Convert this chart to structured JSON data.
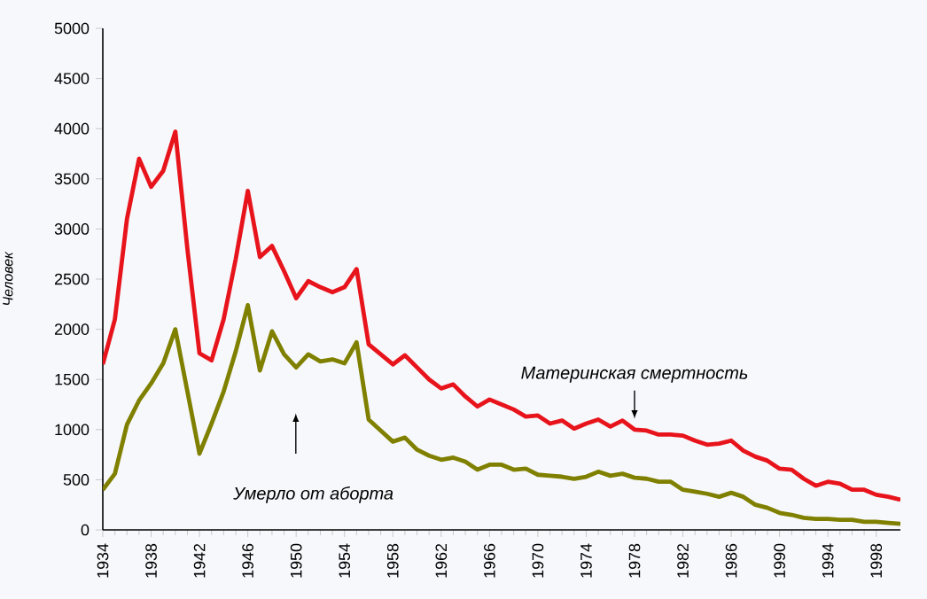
{
  "chart_data": {
    "type": "line",
    "ylabel": "Человек",
    "x": [
      1934,
      1935,
      1936,
      1937,
      1938,
      1939,
      1940,
      1941,
      1942,
      1943,
      1944,
      1945,
      1946,
      1947,
      1948,
      1949,
      1950,
      1951,
      1952,
      1953,
      1954,
      1955,
      1956,
      1957,
      1958,
      1959,
      1960,
      1961,
      1962,
      1963,
      1964,
      1965,
      1966,
      1967,
      1968,
      1969,
      1970,
      1971,
      1972,
      1973,
      1974,
      1975,
      1976,
      1977,
      1978,
      1979,
      1980,
      1981,
      1982,
      1983,
      1984,
      1985,
      1986,
      1987,
      1988,
      1989,
      1990,
      1991,
      1992,
      1993,
      1994,
      1995,
      1996,
      1997,
      1998,
      1999,
      2000
    ],
    "series": [
      {
        "color": "#e8141c",
        "values": [
          1650,
          2100,
          3100,
          3700,
          3420,
          3580,
          3970,
          2800,
          1760,
          1690,
          2100,
          2700,
          3380,
          2720,
          2830,
          2580,
          2310,
          2480,
          2420,
          2370,
          2420,
          2600,
          1850,
          1750,
          1650,
          1740,
          1620,
          1500,
          1410,
          1450,
          1330,
          1230,
          1300,
          1250,
          1200,
          1130,
          1140,
          1060,
          1090,
          1010,
          1060,
          1100,
          1030,
          1090,
          1000,
          990,
          950,
          950,
          940,
          890,
          850,
          860,
          890,
          790,
          730,
          690,
          610,
          600,
          510,
          440,
          480,
          460,
          400,
          400,
          350,
          330,
          300
        ]
      },
      {
        "color": "#808000",
        "values": [
          400,
          560,
          1050,
          1290,
          1460,
          1660,
          2000,
          1380,
          760,
          1060,
          1380,
          1780,
          2240,
          1590,
          1980,
          1750,
          1620,
          1750,
          1680,
          1700,
          1660,
          1870,
          1100,
          990,
          880,
          920,
          800,
          740,
          700,
          720,
          680,
          600,
          650,
          650,
          600,
          610,
          550,
          540,
          530,
          510,
          530,
          580,
          540,
          560,
          520,
          510,
          480,
          480,
          400,
          380,
          360,
          330,
          370,
          330,
          250,
          220,
          170,
          150,
          120,
          110,
          110,
          100,
          100,
          80,
          80,
          70,
          60
        ]
      }
    ],
    "xlim": [
      1934,
      2000
    ],
    "xticks": [
      1934,
      1938,
      1942,
      1946,
      1950,
      1954,
      1958,
      1962,
      1966,
      1970,
      1974,
      1978,
      1982,
      1986,
      1990,
      1994,
      1998
    ],
    "ylim": [
      0,
      5000
    ],
    "yticks": [
      0,
      500,
      1000,
      1500,
      2000,
      2500,
      3000,
      3500,
      4000,
      4500,
      5000
    ],
    "grid": false,
    "marker": "none",
    "line_style": "solid",
    "annotations": [
      {
        "text": "Материнская смертность",
        "x": 1978,
        "y": 1000
      },
      "Умерло от аборта"
    ]
  }
}
